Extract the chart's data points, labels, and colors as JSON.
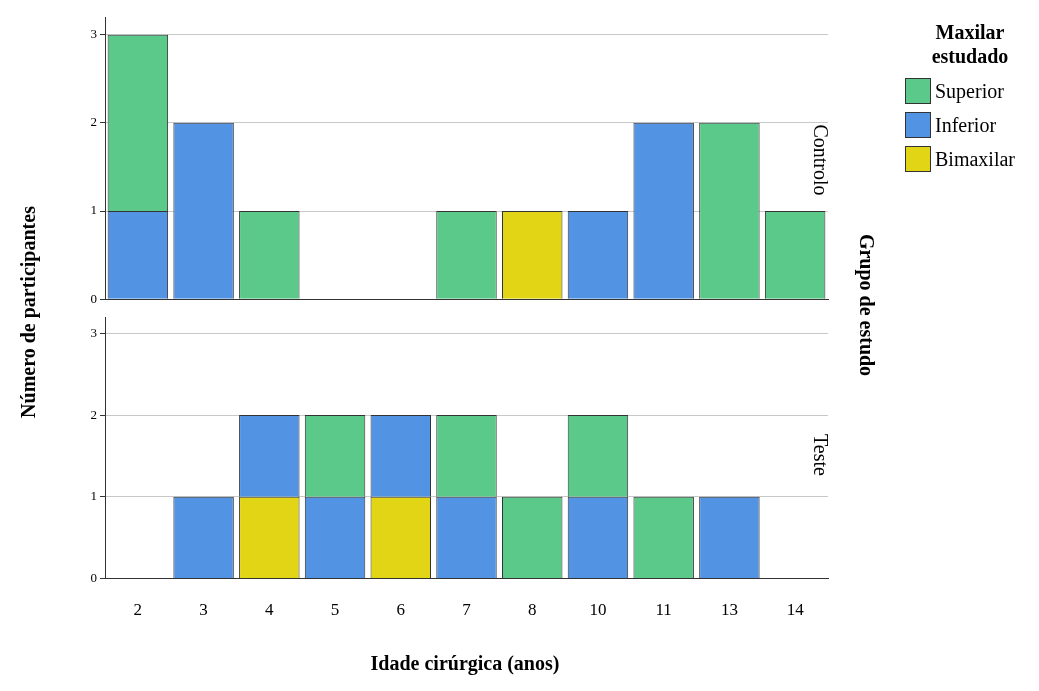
{
  "chart_data": [
    {
      "type": "bar",
      "title": "Controlo",
      "ylabel": "Número de participantes",
      "y2label": "Grupo de estudo",
      "legend_title": "Maxilar estudado",
      "legend": "right",
      "stacked": true,
      "grid": "y",
      "tick_labels": "y",
      "categories": [
        "2",
        "3",
        "4",
        "5",
        "6",
        "7",
        "8",
        "10",
        "11",
        "13",
        "14"
      ],
      "ylim": [
        0,
        3.2
      ],
      "yticks": [
        0,
        1,
        2,
        3
      ],
      "series": [
        {
          "name": "Bimaxilar",
          "color": "#e1d515",
          "values": [
            null,
            null,
            null,
            null,
            null,
            null,
            1,
            null,
            null,
            null,
            null
          ]
        },
        {
          "name": "Inferior",
          "color": "#5294e3",
          "values": [
            1,
            2,
            null,
            null,
            null,
            null,
            null,
            1,
            2,
            null,
            null
          ]
        },
        {
          "name": "Superior",
          "color": "#5bc98a",
          "values": [
            2,
            null,
            1,
            null,
            null,
            1,
            null,
            null,
            null,
            2,
            1
          ]
        }
      ]
    },
    {
      "type": "bar",
      "title": "Teste",
      "xlabel": "Idade cirúrgica (anos)",
      "stacked": true,
      "grid": "y",
      "categories": [
        "2",
        "3",
        "4",
        "5",
        "6",
        "7",
        "8",
        "10",
        "11",
        "13",
        "14"
      ],
      "ylim": [
        0,
        3.2
      ],
      "yticks": [
        0,
        1,
        2,
        3
      ],
      "series": [
        {
          "color": "#e1d515",
          "values": [
            null,
            null,
            1,
            null,
            1,
            null,
            null,
            null,
            null,
            null,
            null
          ]
        },
        {
          "color": "#5294e3",
          "values": [
            null,
            1,
            1,
            1,
            1,
            1,
            null,
            1,
            null,
            1,
            null
          ]
        },
        {
          "color": "#5bc98a",
          "values": [
            null,
            null,
            null,
            1,
            null,
            1,
            1,
            1,
            1,
            null,
            null
          ]
        }
      ]
    }
  ]
}
